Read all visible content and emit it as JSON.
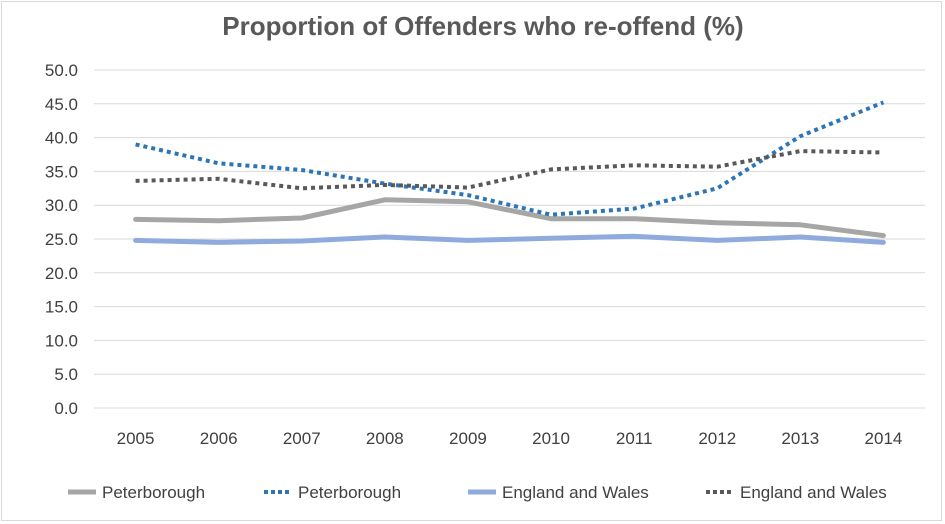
{
  "chart_data": {
    "type": "line",
    "title": "Proportion of Offenders who re-offend (%)",
    "xlabel": "",
    "ylabel": "",
    "categories": [
      "2005",
      "2006",
      "2007",
      "2008",
      "2009",
      "2010",
      "2011",
      "2012",
      "2013",
      "2014"
    ],
    "ylim": [
      0,
      50
    ],
    "yticks": [
      "0.0",
      "5.0",
      "10.0",
      "15.0",
      "20.0",
      "25.0",
      "30.0",
      "35.0",
      "40.0",
      "45.0",
      "50.0"
    ],
    "grid": true,
    "legend_position": "bottom",
    "series": [
      {
        "name": "Peterborough",
        "style": "solid",
        "color": "#a6a6a6",
        "values": [
          27.9,
          27.7,
          28.1,
          30.8,
          30.5,
          28.0,
          28.0,
          27.4,
          27.1,
          25.5
        ]
      },
      {
        "name": "Peterborough",
        "style": "dotted",
        "color": "#2e75b6",
        "values": [
          39.0,
          36.2,
          35.2,
          33.2,
          31.5,
          28.6,
          29.5,
          32.5,
          40.2,
          45.2
        ]
      },
      {
        "name": "England and Wales",
        "style": "solid",
        "color": "#8faadc",
        "values": [
          24.8,
          24.5,
          24.7,
          25.3,
          24.8,
          25.1,
          25.4,
          24.8,
          25.3,
          24.5
        ]
      },
      {
        "name": "England and Wales",
        "style": "dotted",
        "color": "#595959",
        "values": [
          33.6,
          33.9,
          32.5,
          33.0,
          32.6,
          35.3,
          35.9,
          35.7,
          38.0,
          37.8
        ]
      }
    ]
  }
}
